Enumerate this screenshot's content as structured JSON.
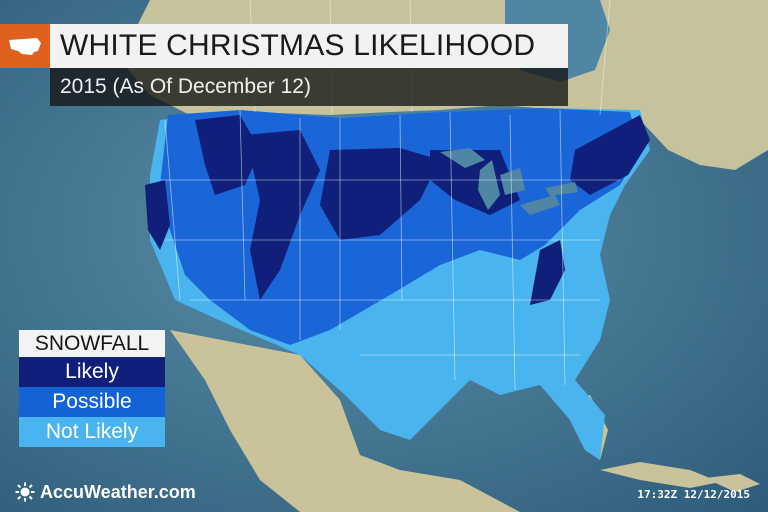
{
  "header": {
    "title": "WHITE CHRISTMAS LIKELIHOOD",
    "subtitle": "2015 (As Of December 12)",
    "icon": "us-map-icon"
  },
  "legend": {
    "heading": "SNOWFALL",
    "items": [
      {
        "label": "Likely",
        "color": "#0f1f7a"
      },
      {
        "label": "Possible",
        "color": "#1463d6"
      },
      {
        "label": "Not Likely",
        "color": "#4ab4ef"
      }
    ]
  },
  "branding": {
    "name": "AccuWeather.com",
    "icon": "sun-logo-icon"
  },
  "timestamp": "17:32Z 12/12/2015",
  "colors": {
    "ocean": "#3d6f8c",
    "land": "#c7c49d",
    "title_accent": "#e0601e"
  }
}
